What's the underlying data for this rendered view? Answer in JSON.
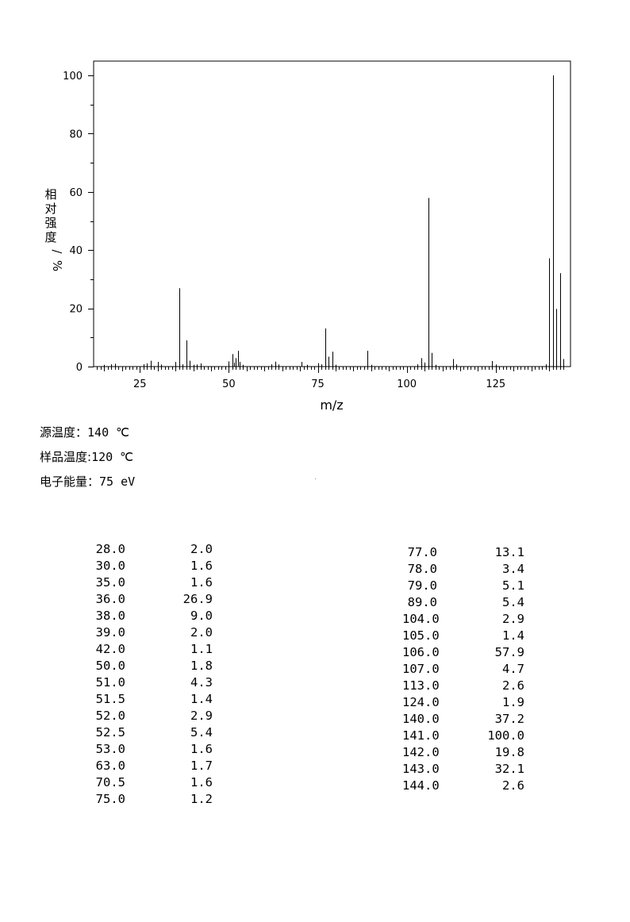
{
  "chart_data": {
    "type": "bar",
    "xlabel": "m/z",
    "ylabel": "相对强度/%",
    "xlim": [
      12,
      146
    ],
    "ylim": [
      0,
      100
    ],
    "x_ticks": [
      25,
      50,
      75,
      100,
      125
    ],
    "y_ticks": [
      0,
      20,
      40,
      60,
      80,
      100
    ],
    "peaks": [
      {
        "x": 15.0,
        "y": 0.6
      },
      {
        "x": 17.0,
        "y": 0.8
      },
      {
        "x": 18.0,
        "y": 1.0
      },
      {
        "x": 26.0,
        "y": 0.8
      },
      {
        "x": 27.0,
        "y": 1.1
      },
      {
        "x": 28.0,
        "y": 2.0
      },
      {
        "x": 30.0,
        "y": 1.6
      },
      {
        "x": 31.0,
        "y": 0.7
      },
      {
        "x": 35.0,
        "y": 1.6
      },
      {
        "x": 36.0,
        "y": 26.9
      },
      {
        "x": 37.0,
        "y": 0.8
      },
      {
        "x": 38.0,
        "y": 9.0
      },
      {
        "x": 39.0,
        "y": 2.0
      },
      {
        "x": 40.0,
        "y": 0.6
      },
      {
        "x": 41.0,
        "y": 0.7
      },
      {
        "x": 42.0,
        "y": 1.1
      },
      {
        "x": 50.0,
        "y": 1.8
      },
      {
        "x": 51.0,
        "y": 4.3
      },
      {
        "x": 51.5,
        "y": 1.4
      },
      {
        "x": 52.0,
        "y": 2.9
      },
      {
        "x": 52.5,
        "y": 5.4
      },
      {
        "x": 53.0,
        "y": 1.6
      },
      {
        "x": 54.0,
        "y": 0.6
      },
      {
        "x": 62.0,
        "y": 0.8
      },
      {
        "x": 63.0,
        "y": 1.7
      },
      {
        "x": 64.0,
        "y": 0.7
      },
      {
        "x": 70.5,
        "y": 1.6
      },
      {
        "x": 72.0,
        "y": 0.6
      },
      {
        "x": 75.0,
        "y": 1.2
      },
      {
        "x": 76.0,
        "y": 0.8
      },
      {
        "x": 77.0,
        "y": 13.1
      },
      {
        "x": 78.0,
        "y": 3.4
      },
      {
        "x": 79.0,
        "y": 5.1
      },
      {
        "x": 80.0,
        "y": 0.6
      },
      {
        "x": 89.0,
        "y": 5.4
      },
      {
        "x": 90.0,
        "y": 0.6
      },
      {
        "x": 103.0,
        "y": 0.8
      },
      {
        "x": 104.0,
        "y": 2.9
      },
      {
        "x": 105.0,
        "y": 1.4
      },
      {
        "x": 106.0,
        "y": 57.9
      },
      {
        "x": 107.0,
        "y": 4.7
      },
      {
        "x": 108.0,
        "y": 0.6
      },
      {
        "x": 113.0,
        "y": 2.6
      },
      {
        "x": 114.0,
        "y": 0.8
      },
      {
        "x": 124.0,
        "y": 1.9
      },
      {
        "x": 125.0,
        "y": 0.7
      },
      {
        "x": 139.0,
        "y": 0.8
      },
      {
        "x": 140.0,
        "y": 37.2
      },
      {
        "x": 141.0,
        "y": 100.0
      },
      {
        "x": 142.0,
        "y": 19.8
      },
      {
        "x": 143.0,
        "y": 32.1
      },
      {
        "x": 144.0,
        "y": 2.6
      }
    ]
  },
  "conditions": {
    "source_temp_label": "源温度：",
    "source_temp_value": "140 ℃",
    "sample_temp_label": "样品温度:",
    "sample_temp_value": "120 ℃",
    "energy_label": "电子能量：",
    "energy_value": "75 eV"
  },
  "peak_table": {
    "left": [
      {
        "mz": "28.0",
        "ab": "2.0"
      },
      {
        "mz": "30.0",
        "ab": "1.6"
      },
      {
        "mz": "35.0",
        "ab": "1.6"
      },
      {
        "mz": "36.0",
        "ab": "26.9"
      },
      {
        "mz": "38.0",
        "ab": "9.0"
      },
      {
        "mz": "39.0",
        "ab": "2.0"
      },
      {
        "mz": "42.0",
        "ab": "1.1"
      },
      {
        "mz": "50.0",
        "ab": "1.8"
      },
      {
        "mz": "51.0",
        "ab": "4.3"
      },
      {
        "mz": "51.5",
        "ab": "1.4"
      },
      {
        "mz": "52.0",
        "ab": "2.9"
      },
      {
        "mz": "52.5",
        "ab": "5.4"
      },
      {
        "mz": "53.0",
        "ab": "1.6"
      },
      {
        "mz": "63.0",
        "ab": "1.7"
      },
      {
        "mz": "70.5",
        "ab": "1.6"
      },
      {
        "mz": "75.0",
        "ab": "1.2"
      }
    ],
    "right": [
      {
        "mz": "77.0",
        "ab": "13.1"
      },
      {
        "mz": "78.0",
        "ab": "3.4"
      },
      {
        "mz": "79.0",
        "ab": "5.1"
      },
      {
        "mz": "89.0",
        "ab": "5.4"
      },
      {
        "mz": "104.0",
        "ab": "2.9"
      },
      {
        "mz": "105.0",
        "ab": "1.4"
      },
      {
        "mz": "106.0",
        "ab": "57.9"
      },
      {
        "mz": "107.0",
        "ab": "4.7"
      },
      {
        "mz": "113.0",
        "ab": "2.6"
      },
      {
        "mz": "124.0",
        "ab": "1.9"
      },
      {
        "mz": "140.0",
        "ab": "37.2"
      },
      {
        "mz": "141.0",
        "ab": "100.0"
      },
      {
        "mz": "142.0",
        "ab": "19.8"
      },
      {
        "mz": "143.0",
        "ab": "32.1"
      },
      {
        "mz": "144.0",
        "ab": "2.6"
      }
    ]
  }
}
